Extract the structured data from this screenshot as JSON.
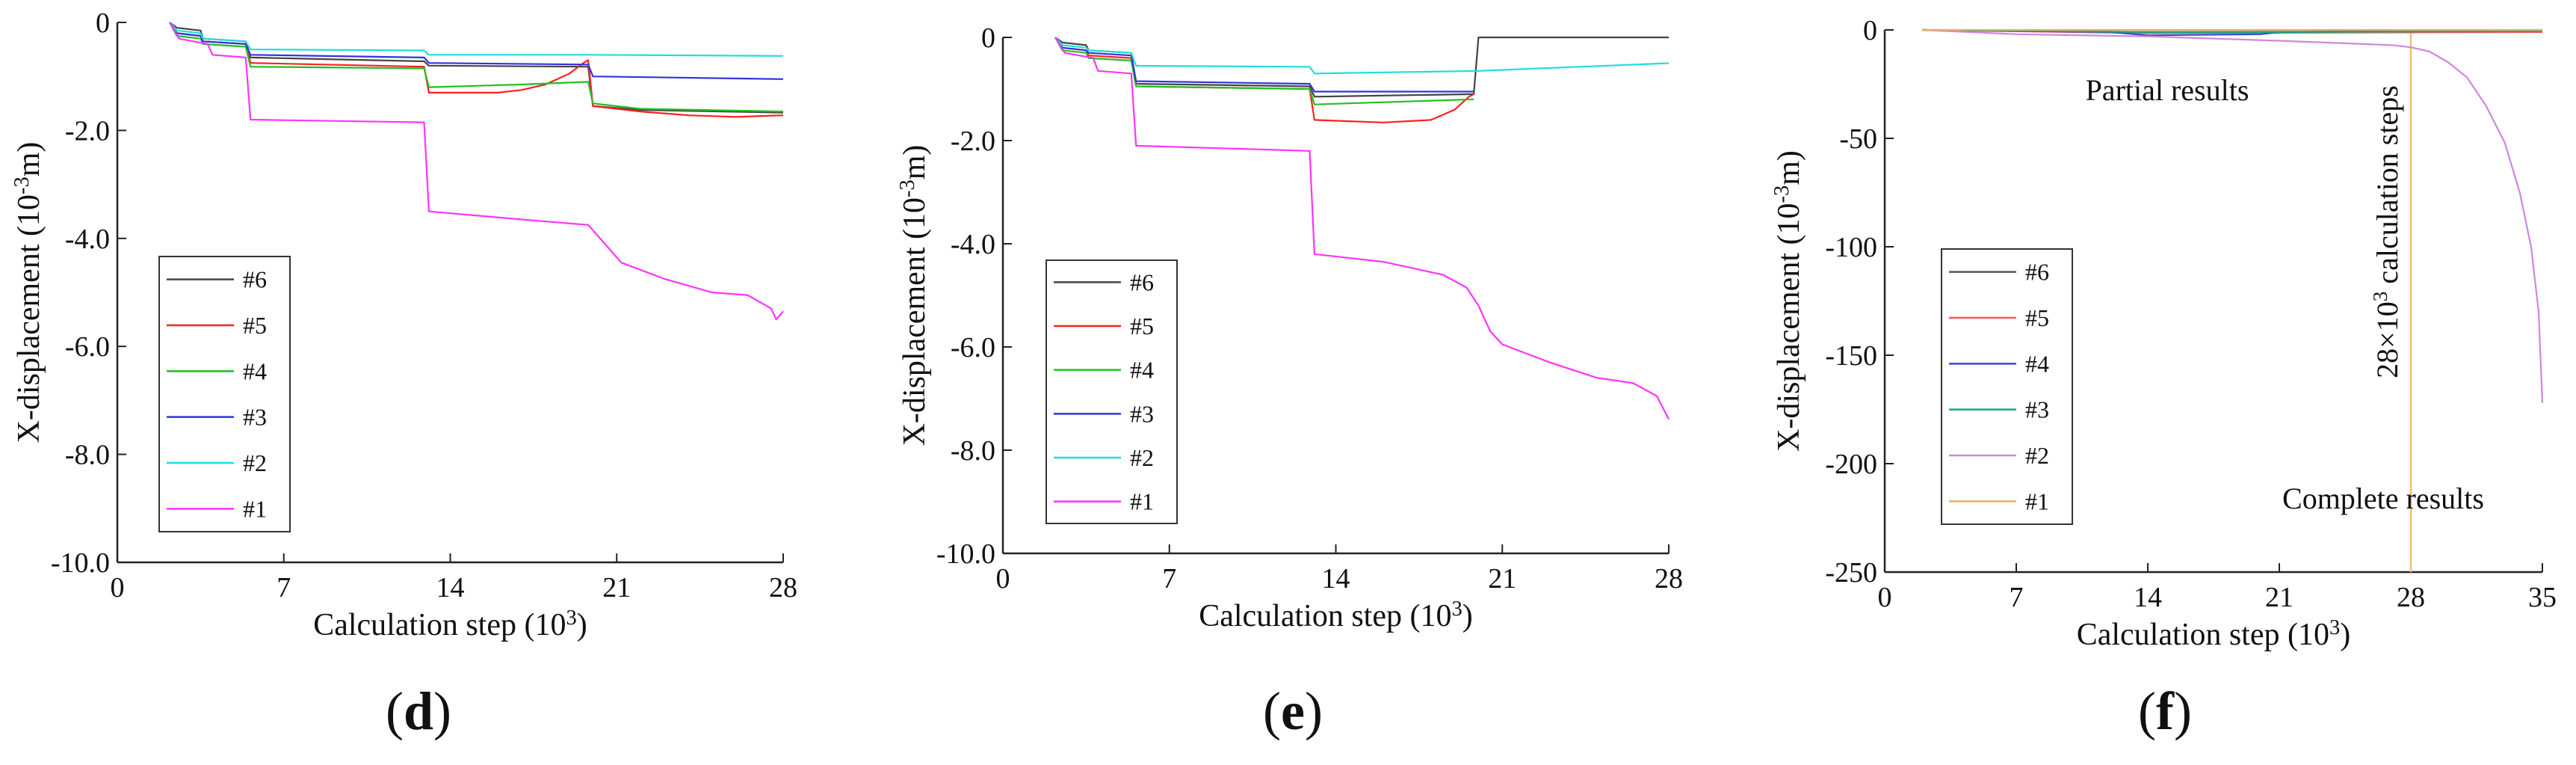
{
  "chart_data": [
    {
      "panel": "d",
      "type": "line",
      "xlabel": "Calculation step (10^3)",
      "ylabel": "X-displacement (10^-3m)",
      "xlim": [
        0,
        28
      ],
      "ylim": [
        -10,
        0
      ],
      "xticks": [
        0,
        7,
        14,
        21,
        28
      ],
      "yticks": [
        0,
        -2,
        -4,
        -6,
        -8,
        -10
      ],
      "ytick_labels": [
        "0",
        "-2.0",
        "-4.0",
        "-6.0",
        "-8.0",
        "-10.0"
      ],
      "legend": [
        "#6",
        "#5",
        "#4",
        "#3",
        "#2",
        "#1"
      ],
      "series": [
        {
          "name": "#6",
          "color": "#444444",
          "points": [
            [
              2.2,
              0
            ],
            [
              2.5,
              -0.1
            ],
            [
              3.5,
              -0.15
            ],
            [
              3.6,
              -0.3
            ],
            [
              5.4,
              -0.35
            ],
            [
              5.6,
              -0.65
            ],
            [
              12.9,
              -0.72
            ],
            [
              13.1,
              -0.8
            ],
            [
              19.8,
              -0.82
            ],
            [
              20.0,
              -1.55
            ],
            [
              22,
              -1.62
            ],
            [
              28,
              -1.67
            ]
          ]
        },
        {
          "name": "#5",
          "color": "#ff2020",
          "points": [
            [
              2.2,
              0
            ],
            [
              2.5,
              -0.2
            ],
            [
              3.5,
              -0.25
            ],
            [
              3.6,
              -0.35
            ],
            [
              5.4,
              -0.4
            ],
            [
              5.6,
              -0.75
            ],
            [
              12.9,
              -0.82
            ],
            [
              13.1,
              -1.3
            ],
            [
              16,
              -1.3
            ],
            [
              17,
              -1.25
            ],
            [
              18,
              -1.15
            ],
            [
              19,
              -0.95
            ],
            [
              19.6,
              -0.75
            ],
            [
              19.8,
              -0.7
            ],
            [
              20.0,
              -1.55
            ],
            [
              22,
              -1.65
            ],
            [
              24,
              -1.72
            ],
            [
              26,
              -1.75
            ],
            [
              28,
              -1.72
            ]
          ]
        },
        {
          "name": "#4",
          "color": "#20c020",
          "points": [
            [
              2.2,
              0
            ],
            [
              2.5,
              -0.25
            ],
            [
              3.5,
              -0.3
            ],
            [
              3.6,
              -0.4
            ],
            [
              5.4,
              -0.45
            ],
            [
              5.6,
              -0.82
            ],
            [
              12.9,
              -0.85
            ],
            [
              13.1,
              -1.2
            ],
            [
              17,
              -1.15
            ],
            [
              19.8,
              -1.1
            ],
            [
              20.0,
              -1.5
            ],
            [
              22,
              -1.6
            ],
            [
              28,
              -1.65
            ]
          ]
        },
        {
          "name": "#3",
          "color": "#3333dd",
          "points": [
            [
              2.2,
              0
            ],
            [
              2.5,
              -0.2
            ],
            [
              3.5,
              -0.25
            ],
            [
              3.6,
              -0.35
            ],
            [
              5.4,
              -0.4
            ],
            [
              5.6,
              -0.6
            ],
            [
              12.9,
              -0.65
            ],
            [
              13.1,
              -0.75
            ],
            [
              19.8,
              -0.78
            ],
            [
              20.0,
              -1.0
            ],
            [
              28,
              -1.05
            ]
          ]
        },
        {
          "name": "#2",
          "color": "#22dddd",
          "points": [
            [
              2.2,
              0
            ],
            [
              2.5,
              -0.15
            ],
            [
              3.5,
              -0.2
            ],
            [
              3.6,
              -0.3
            ],
            [
              5.4,
              -0.35
            ],
            [
              5.6,
              -0.5
            ],
            [
              12.9,
              -0.52
            ],
            [
              13.1,
              -0.6
            ],
            [
              20,
              -0.6
            ],
            [
              28,
              -0.62
            ]
          ]
        },
        {
          "name": "#1",
          "color": "#ff33ff",
          "points": [
            [
              2.2,
              0
            ],
            [
              2.6,
              -0.3
            ],
            [
              3.8,
              -0.4
            ],
            [
              4.0,
              -0.6
            ],
            [
              5.4,
              -0.65
            ],
            [
              5.6,
              -1.8
            ],
            [
              12.9,
              -1.85
            ],
            [
              13.1,
              -3.5
            ],
            [
              17,
              -3.65
            ],
            [
              19.8,
              -3.75
            ],
            [
              20.5,
              -4.1
            ],
            [
              21.2,
              -4.45
            ],
            [
              23,
              -4.75
            ],
            [
              25,
              -5.0
            ],
            [
              26.5,
              -5.05
            ],
            [
              27.5,
              -5.3
            ],
            [
              27.7,
              -5.5
            ],
            [
              28,
              -5.35
            ]
          ]
        }
      ],
      "label": "(d)"
    },
    {
      "panel": "e",
      "type": "line",
      "xlabel": "Calculation step (10^3)",
      "ylabel": "X-displacement (10^-3m)",
      "xlim": [
        0,
        28
      ],
      "ylim": [
        -10,
        0
      ],
      "xticks": [
        0,
        7,
        14,
        21,
        28
      ],
      "yticks": [
        0,
        -2,
        -4,
        -6,
        -8,
        -10
      ],
      "ytick_labels": [
        "0",
        "-2.0",
        "-4.0",
        "-6.0",
        "-8.0",
        "-10.0"
      ],
      "legend": [
        "#6",
        "#5",
        "#4",
        "#3",
        "#2",
        "#1"
      ],
      "series": [
        {
          "name": "#6",
          "color": "#444444",
          "points": [
            [
              2.2,
              0
            ],
            [
              2.5,
              -0.1
            ],
            [
              3.5,
              -0.15
            ],
            [
              3.6,
              -0.25
            ],
            [
              5.4,
              -0.3
            ],
            [
              5.6,
              -0.9
            ],
            [
              12.9,
              -0.95
            ],
            [
              13.1,
              -1.15
            ],
            [
              19.8,
              -1.1
            ],
            [
              20.0,
              0
            ],
            [
              28,
              0
            ]
          ]
        },
        {
          "name": "#5",
          "color": "#ff2020",
          "points": [
            [
              2.2,
              0
            ],
            [
              2.5,
              -0.2
            ],
            [
              3.5,
              -0.25
            ],
            [
              3.6,
              -0.35
            ],
            [
              5.4,
              -0.4
            ],
            [
              5.6,
              -0.95
            ],
            [
              12.9,
              -1.0
            ],
            [
              13.1,
              -1.6
            ],
            [
              16,
              -1.65
            ],
            [
              18,
              -1.6
            ],
            [
              19,
              -1.4
            ],
            [
              19.6,
              -1.15
            ],
            [
              19.8,
              -1.1
            ]
          ]
        },
        {
          "name": "#4",
          "color": "#20c020",
          "points": [
            [
              2.2,
              0
            ],
            [
              2.5,
              -0.25
            ],
            [
              3.5,
              -0.3
            ],
            [
              3.6,
              -0.4
            ],
            [
              5.4,
              -0.45
            ],
            [
              5.6,
              -0.95
            ],
            [
              12.9,
              -1.0
            ],
            [
              13.1,
              -1.3
            ],
            [
              19.8,
              -1.2
            ]
          ]
        },
        {
          "name": "#3",
          "color": "#3333dd",
          "points": [
            [
              2.2,
              0
            ],
            [
              2.5,
              -0.2
            ],
            [
              3.5,
              -0.25
            ],
            [
              3.6,
              -0.3
            ],
            [
              5.4,
              -0.35
            ],
            [
              5.6,
              -0.85
            ],
            [
              12.9,
              -0.9
            ],
            [
              13.1,
              -1.05
            ],
            [
              19.8,
              -1.05
            ]
          ]
        },
        {
          "name": "#2",
          "color": "#22dddd",
          "points": [
            [
              2.2,
              0
            ],
            [
              2.5,
              -0.15
            ],
            [
              3.5,
              -0.2
            ],
            [
              3.6,
              -0.25
            ],
            [
              5.4,
              -0.3
            ],
            [
              5.6,
              -0.55
            ],
            [
              12.9,
              -0.57
            ],
            [
              13.1,
              -0.7
            ],
            [
              20,
              -0.65
            ],
            [
              28,
              -0.5
            ]
          ]
        },
        {
          "name": "#1",
          "color": "#ff33ff",
          "points": [
            [
              2.2,
              0
            ],
            [
              2.6,
              -0.3
            ],
            [
              3.8,
              -0.4
            ],
            [
              4.0,
              -0.65
            ],
            [
              5.4,
              -0.7
            ],
            [
              5.6,
              -2.1
            ],
            [
              12.9,
              -2.2
            ],
            [
              13.1,
              -4.2
            ],
            [
              16,
              -4.35
            ],
            [
              18.5,
              -4.6
            ],
            [
              19.5,
              -4.85
            ],
            [
              20,
              -5.2
            ],
            [
              20.5,
              -5.7
            ],
            [
              21,
              -5.95
            ],
            [
              23,
              -6.3
            ],
            [
              25,
              -6.6
            ],
            [
              26.5,
              -6.7
            ],
            [
              27.5,
              -6.95
            ],
            [
              28,
              -7.4
            ]
          ]
        }
      ],
      "label": "(e)"
    },
    {
      "panel": "f",
      "type": "line",
      "xlabel": "Calculation step (10^3)",
      "ylabel": "X-displacement (10^-3m)",
      "xlim": [
        0,
        35
      ],
      "ylim": [
        -250,
        0
      ],
      "xticks": [
        0,
        7,
        14,
        21,
        28,
        35
      ],
      "yticks": [
        0,
        -50,
        -100,
        -150,
        -200,
        -250
      ],
      "ytick_labels": [
        "0",
        "-50",
        "-100",
        "-150",
        "-200",
        "-250"
      ],
      "legend": [
        "#6",
        "#5",
        "#4",
        "#3",
        "#2",
        "#1"
      ],
      "series": [
        {
          "name": "#6",
          "color": "#555555",
          "points": [
            [
              2,
              0
            ],
            [
              14,
              -1
            ],
            [
              35,
              -0.5
            ]
          ]
        },
        {
          "name": "#5",
          "color": "#ff5555",
          "points": [
            [
              2,
              0
            ],
            [
              14,
              -1.5
            ],
            [
              35,
              -1
            ]
          ]
        },
        {
          "name": "#4",
          "color": "#4444cc",
          "points": [
            [
              2,
              0
            ],
            [
              12,
              -1
            ],
            [
              14,
              -2.5
            ],
            [
              20,
              -2
            ],
            [
              21,
              -1
            ],
            [
              35,
              0
            ]
          ]
        },
        {
          "name": "#3",
          "color": "#11aa88",
          "points": [
            [
              2,
              0
            ],
            [
              14,
              -1
            ],
            [
              21,
              -1
            ],
            [
              35,
              -0.5
            ]
          ]
        },
        {
          "name": "#2",
          "color": "#cc88dd",
          "points": [
            [
              2,
              0
            ],
            [
              7,
              -2
            ],
            [
              14,
              -3
            ],
            [
              21,
              -5
            ],
            [
              27,
              -7
            ],
            [
              28,
              -8
            ],
            [
              29,
              -10
            ],
            [
              30,
              -15
            ],
            [
              31,
              -22
            ],
            [
              32,
              -35
            ],
            [
              33,
              -52
            ],
            [
              33.8,
              -75
            ],
            [
              34.4,
              -100
            ],
            [
              34.8,
              -130
            ],
            [
              35,
              -172
            ]
          ]
        },
        {
          "name": "#1",
          "color": "#e8b060",
          "points": [
            [
              2,
              0
            ],
            [
              35,
              0
            ]
          ]
        }
      ],
      "vline_x": 28,
      "vline_color": "#e8c070",
      "annotations": {
        "partial": "Partial results",
        "complete": "Complete results",
        "steps_text": "28×10",
        "steps_sup": "3",
        "steps_tail": " calculation steps"
      },
      "label": "(f)"
    }
  ],
  "axis_text": {
    "xlabel_main": "Calculation step (10",
    "xlabel_sup": "3",
    "xlabel_tail": ")",
    "ylabel_main": "X-displacement (10",
    "ylabel_sup": "-3",
    "ylabel_tail": "m)",
    "f_ylabel_main": "X-displacement (10",
    "f_ylabel_sup": "-3",
    "f_ylabel_tail": "m)"
  },
  "panel_letters": [
    "d",
    "e",
    "f"
  ]
}
